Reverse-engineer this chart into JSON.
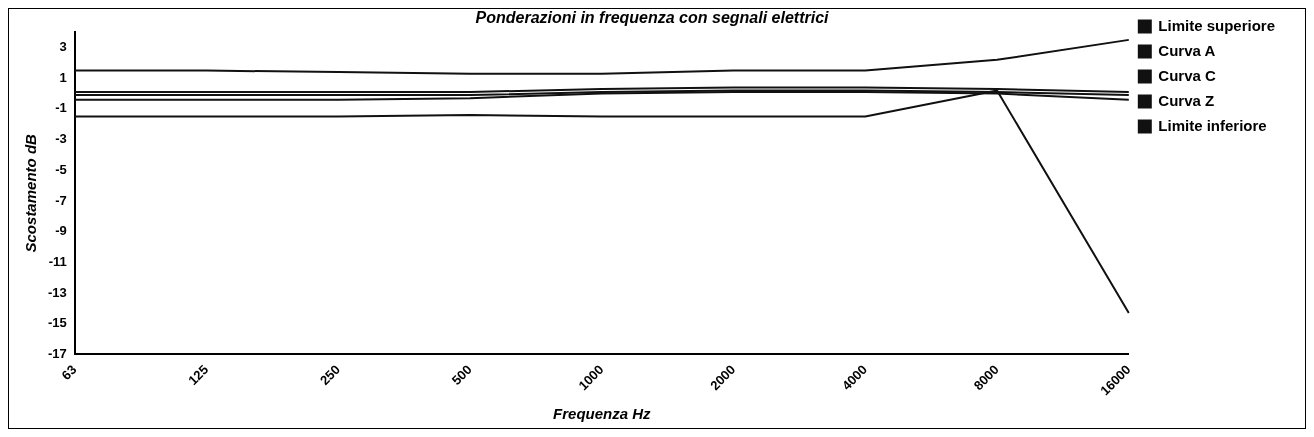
{
  "chart_data": {
    "type": "line",
    "title": "Ponderazioni in frequenza con segnali elettrici",
    "xlabel": "Frequenza Hz",
    "ylabel": "Scostamento dB",
    "categories": [
      "63",
      "125",
      "250",
      "500",
      "1000",
      "2000",
      "4000",
      "8000",
      "16000"
    ],
    "ylim": [
      -17,
      4
    ],
    "yticks": [
      3,
      1,
      -1,
      -3,
      -5,
      -7,
      -9,
      -11,
      -13,
      -15,
      -17
    ],
    "grid": false,
    "legend": "right",
    "marker": "none",
    "line_style": "solid",
    "series": [
      {
        "name": "Limite superiore",
        "color": "#111111",
        "values": [
          1.5,
          1.5,
          1.4,
          1.3,
          1.3,
          1.5,
          1.5,
          2.2,
          3.5
        ]
      },
      {
        "name": "Curva A",
        "color": "#111111",
        "values": [
          -0.4,
          -0.4,
          -0.4,
          -0.3,
          0,
          0.1,
          0.1,
          0,
          -0.4
        ]
      },
      {
        "name": "Curva C",
        "color": "#111111",
        "values": [
          -0.1,
          -0.1,
          -0.1,
          -0.1,
          0.1,
          0.2,
          0.2,
          0.1,
          -0.1
        ]
      },
      {
        "name": "Curva Z",
        "color": "#111111",
        "values": [
          0.1,
          0.1,
          0.1,
          0.1,
          0.3,
          0.4,
          0.4,
          0.3,
          0.1
        ]
      },
      {
        "name": "Limite inferiore",
        "color": "#111111",
        "values": [
          -1.5,
          -1.5,
          -1.5,
          -1.4,
          -1.5,
          -1.5,
          -1.5,
          0.2,
          -14.3
        ]
      }
    ]
  }
}
